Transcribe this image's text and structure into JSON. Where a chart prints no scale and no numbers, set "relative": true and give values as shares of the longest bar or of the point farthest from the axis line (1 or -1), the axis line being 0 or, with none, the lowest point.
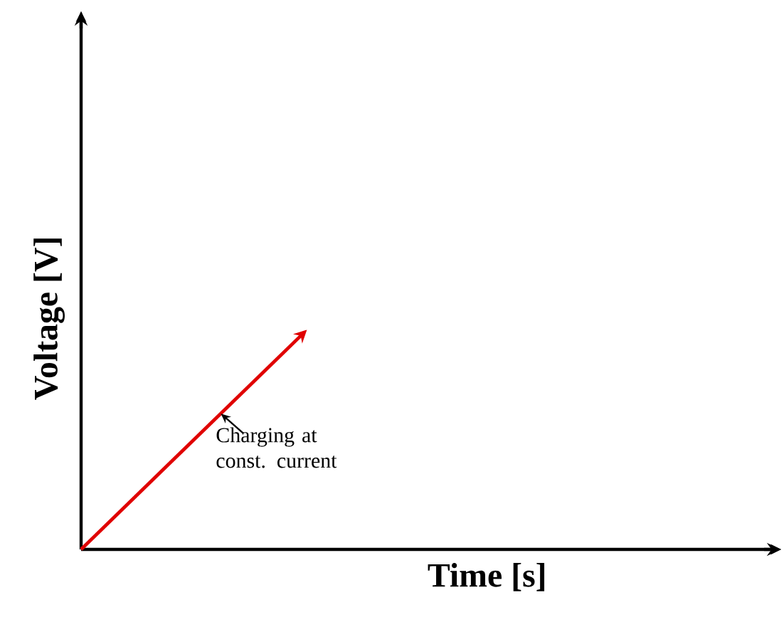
{
  "chart_data": {
    "type": "line",
    "relative": true,
    "xlabel": "Time [s]",
    "ylabel": "Voltage [V]",
    "categories": [
      null,
      null
    ],
    "series": [
      {
        "color": "#e00000",
        "values": [
          0,
          1
        ]
      }
    ],
    "annotations": [
      "Charging at const. current"
    ]
  }
}
